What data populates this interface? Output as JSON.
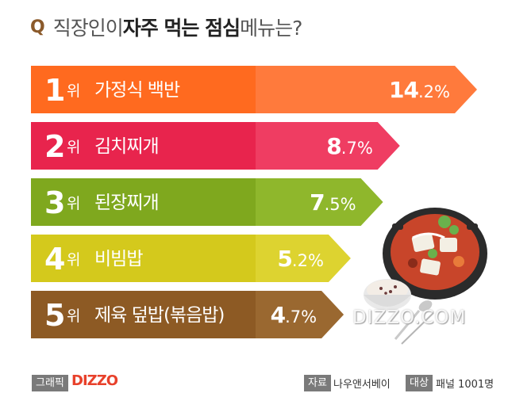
{
  "title": {
    "q": "Q",
    "part1": "직장인이 ",
    "part2": "자주 먹는 점심",
    "part3": " 메뉴는?"
  },
  "chart_data": {
    "type": "bar",
    "title": "직장인이 자주 먹는 점심 메뉴는?",
    "rank_suffix": "위",
    "unit": "%",
    "categories": [
      {
        "rank": "1",
        "name": "가정식 백반",
        "value": 14.2,
        "int": "14",
        "dec": ".2%",
        "color": "#ff6a1f",
        "value_color": "#ff7a3c"
      },
      {
        "rank": "2",
        "name": "김치찌개",
        "value": 8.7,
        "int": "8",
        "dec": ".7%",
        "color": "#e8244d",
        "value_color": "#ef3d62"
      },
      {
        "rank": "3",
        "name": "된장찌개",
        "value": 7.5,
        "int": "7",
        "dec": ".5%",
        "color": "#7fa81e",
        "value_color": "#8fb72c"
      },
      {
        "rank": "4",
        "name": "비빔밥",
        "value": 5.2,
        "int": "5",
        "dec": ".2%",
        "color": "#d4c91c",
        "value_color": "#ddd330"
      },
      {
        "rank": "5",
        "name": "제육 덮밥(볶음밥)",
        "value": 4.7,
        "int": "4",
        "dec": ".7%",
        "color": "#8d5a24",
        "value_color": "#9a6830"
      }
    ]
  },
  "watermark": "DIZZO.COM",
  "footer": {
    "graphic_tag": "그래픽",
    "brand": "DIZZO",
    "source_tag": "자료",
    "source_value": "나우앤서베이",
    "target_tag": "대상",
    "target_value": "패널 1001명"
  }
}
